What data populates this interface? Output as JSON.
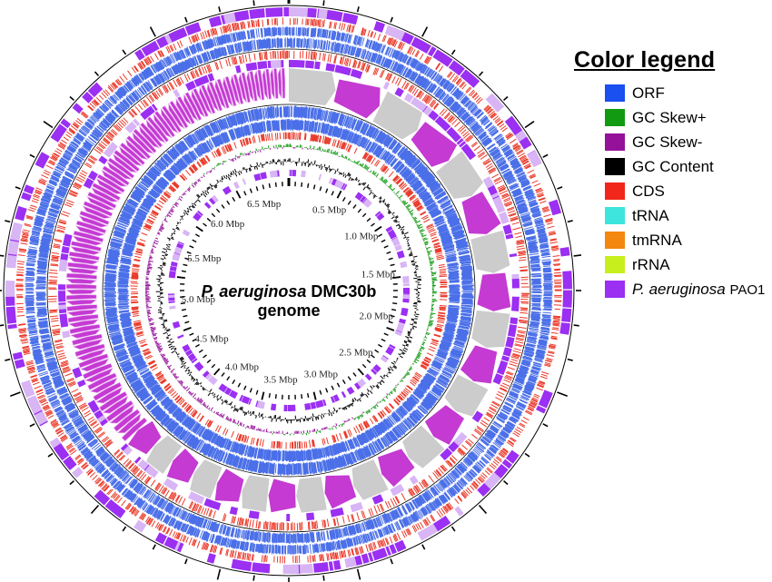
{
  "genome_title": {
    "line1_italic": "P. aeruginosa",
    "line1_rest": " DMC30b",
    "line2": "genome"
  },
  "ticks": [
    "0.5 Mbp",
    "1.0 Mbp",
    "1.5 Mbp",
    "2.0 Mbp",
    "2.5 Mbp",
    "3.0 Mbp",
    "3.5 Mbp",
    "4.0 Mbp",
    "4.5 Mbp",
    "5.0 Mbp",
    "5.5 Mbp",
    "6.0 Mbp",
    "6.5 Mbp"
  ],
  "legend": {
    "title": "Color legend",
    "items": [
      {
        "label": "ORF",
        "color": "#1a4ff0"
      },
      {
        "label": "GC Skew+",
        "color": "#129a12"
      },
      {
        "label": "GC Skew-",
        "color": "#95119a"
      },
      {
        "label": "GC Content",
        "color": "#000000"
      },
      {
        "label": "CDS",
        "color": "#f0271a"
      },
      {
        "label": "tRNA",
        "color": "#3ee5dc"
      },
      {
        "label": "tmRNA",
        "color": "#f3870f"
      },
      {
        "label": "rRNA",
        "color": "#c7ef1d"
      },
      {
        "italic": "P. aeruginosa",
        "suffix": "PAO1",
        "color": "#9b2ff2"
      }
    ]
  },
  "colors": {
    "orf": "#4a6fe8",
    "cds": "#ea3a2a",
    "pao1": "#9b2ff2",
    "pao1_light": "#d8b5f5",
    "skew_pos": "#129a12",
    "skew_neg": "#95119a",
    "gc_content": "#000000",
    "block_magenta": "#c43ad2",
    "block_grey": "#cccccc"
  }
}
